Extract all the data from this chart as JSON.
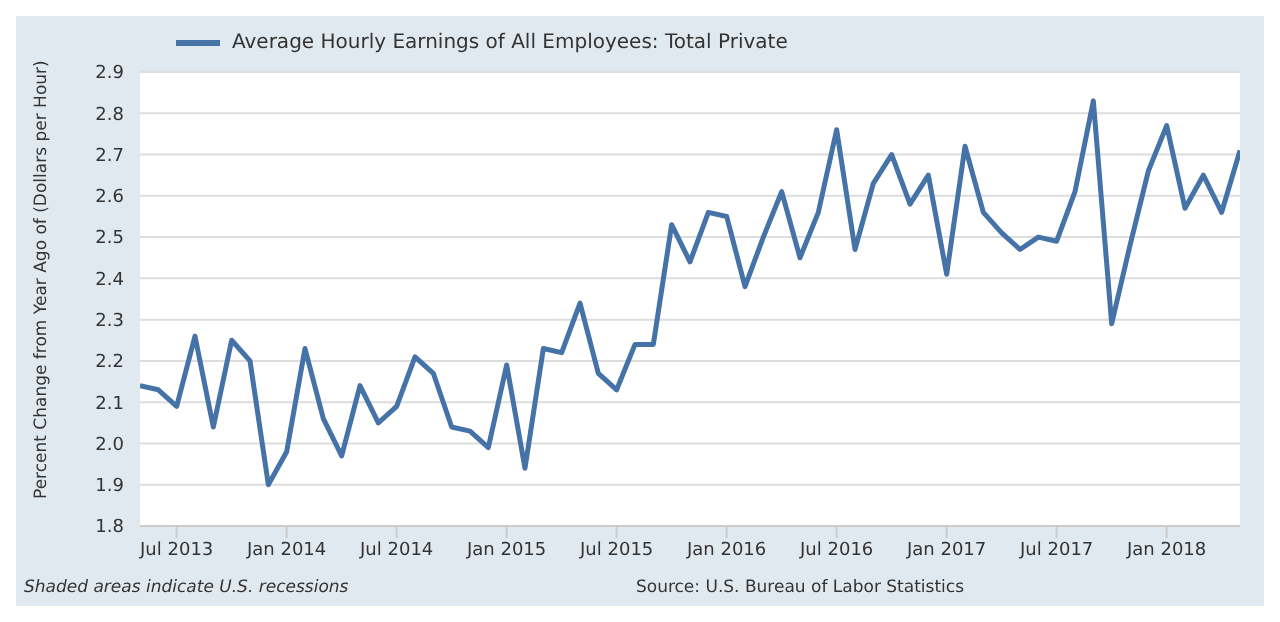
{
  "chart_data": {
    "type": "line",
    "ylabel": "Percent Change from Year Ago of (Dollars per Hour)",
    "x": [
      "2013-05",
      "2013-06",
      "2013-07",
      "2013-08",
      "2013-09",
      "2013-10",
      "2013-11",
      "2013-12",
      "2014-01",
      "2014-02",
      "2014-03",
      "2014-04",
      "2014-05",
      "2014-06",
      "2014-07",
      "2014-08",
      "2014-09",
      "2014-10",
      "2014-11",
      "2014-12",
      "2015-01",
      "2015-02",
      "2015-03",
      "2015-04",
      "2015-05",
      "2015-06",
      "2015-07",
      "2015-08",
      "2015-09",
      "2015-10",
      "2015-11",
      "2015-12",
      "2016-01",
      "2016-02",
      "2016-03",
      "2016-04",
      "2016-05",
      "2016-06",
      "2016-07",
      "2016-08",
      "2016-09",
      "2016-10",
      "2016-11",
      "2016-12",
      "2017-01",
      "2017-02",
      "2017-03",
      "2017-04",
      "2017-05",
      "2017-06",
      "2017-07",
      "2017-08",
      "2017-09",
      "2017-10",
      "2017-11",
      "2017-12",
      "2018-01",
      "2018-02",
      "2018-03",
      "2018-04",
      "2018-05"
    ],
    "series": [
      {
        "name": "Average Hourly Earnings of All Employees: Total Private",
        "color": "#4572a7",
        "values": [
          2.14,
          2.13,
          2.09,
          2.26,
          2.04,
          2.25,
          2.2,
          1.9,
          1.98,
          2.23,
          2.06,
          1.97,
          2.14,
          2.05,
          2.09,
          2.21,
          2.17,
          2.04,
          2.03,
          1.99,
          2.19,
          1.94,
          2.23,
          2.22,
          2.34,
          2.17,
          2.13,
          2.24,
          2.24,
          2.53,
          2.44,
          2.56,
          2.55,
          2.38,
          2.5,
          2.61,
          2.45,
          2.56,
          2.76,
          2.47,
          2.63,
          2.7,
          2.58,
          2.65,
          2.41,
          2.72,
          2.56,
          2.51,
          2.47,
          2.5,
          2.49,
          2.61,
          2.83,
          2.29,
          2.48,
          2.66,
          2.77,
          2.57,
          2.65,
          2.56,
          2.71
        ]
      }
    ],
    "xlim": [
      "2013-05",
      "2018-05"
    ],
    "xticks": [
      {
        "value": "2013-07",
        "label": "Jul 2013"
      },
      {
        "value": "2014-01",
        "label": "Jan 2014"
      },
      {
        "value": "2014-07",
        "label": "Jul 2014"
      },
      {
        "value": "2015-01",
        "label": "Jan 2015"
      },
      {
        "value": "2015-07",
        "label": "Jul 2015"
      },
      {
        "value": "2016-01",
        "label": "Jan 2016"
      },
      {
        "value": "2016-07",
        "label": "Jul 2016"
      },
      {
        "value": "2017-01",
        "label": "Jan 2017"
      },
      {
        "value": "2017-07",
        "label": "Jul 2017"
      },
      {
        "value": "2018-01",
        "label": "Jan 2018"
      }
    ],
    "ylim": [
      1.8,
      2.9
    ],
    "yticks": [
      {
        "value": 1.8,
        "label": "1.8"
      },
      {
        "value": 1.9,
        "label": "1.9"
      },
      {
        "value": 2.0,
        "label": "2.0"
      },
      {
        "value": 2.1,
        "label": "2.1"
      },
      {
        "value": 2.2,
        "label": "2.2"
      },
      {
        "value": 2.3,
        "label": "2.3"
      },
      {
        "value": 2.4,
        "label": "2.4"
      },
      {
        "value": 2.5,
        "label": "2.5"
      },
      {
        "value": 2.6,
        "label": "2.6"
      },
      {
        "value": 2.7,
        "label": "2.7"
      },
      {
        "value": 2.8,
        "label": "2.8"
      },
      {
        "value": 2.9,
        "label": "2.9"
      }
    ],
    "grid": "y",
    "legend": "top left",
    "marker": "none",
    "line_style": "solid",
    "annotations": [
      "Shaded areas indicate U.S. recessions",
      "Source: U.S. Bureau of Labor Statistics"
    ]
  }
}
